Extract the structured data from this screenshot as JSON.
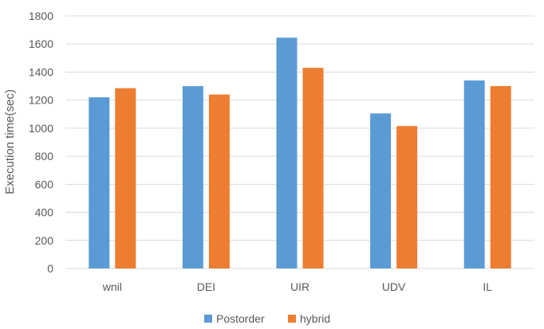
{
  "chart_data": {
    "type": "bar",
    "categories": [
      "wnil",
      "DEI",
      "UIR",
      "UDV",
      "IL"
    ],
    "series": [
      {
        "name": "Postorder",
        "color": "#5B9BD5",
        "values": [
          1220,
          1300,
          1645,
          1105,
          1340
        ]
      },
      {
        "name": "hybrid",
        "color": "#ED7D31",
        "values": [
          1285,
          1240,
          1430,
          1015,
          1300
        ]
      }
    ],
    "ylabel": "Execution time(sec)",
    "xlabel": "",
    "ylim": [
      0,
      1800
    ],
    "yticks": [
      0,
      200,
      400,
      600,
      800,
      1000,
      1200,
      1400,
      1600,
      1800
    ],
    "grid": "horizontal",
    "legend": "bottom-center"
  }
}
